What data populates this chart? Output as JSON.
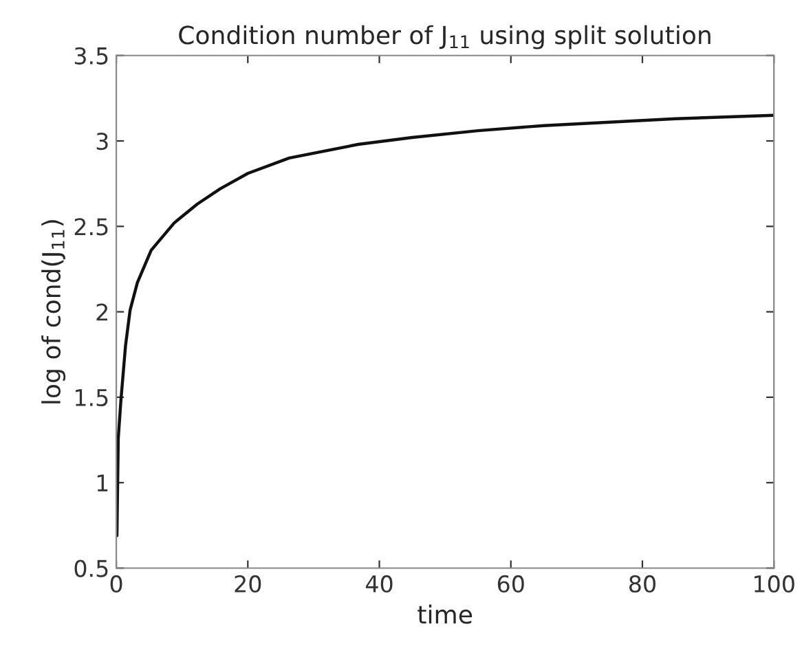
{
  "chart_data": {
    "type": "line",
    "title": "Condition number of J$_{11}$ using split solution",
    "xlabel": "time",
    "ylabel": "log of cond(J$_{11}$)",
    "series": [
      {
        "color": "#111111",
        "x": [
          0.1,
          0.3,
          0.7,
          1.4,
          2.1,
          3.2,
          5.3,
          8.8,
          12.3,
          15.8,
          20,
          26.3,
          36.8,
          45,
          55,
          65,
          75,
          85,
          100
        ],
        "values": [
          0.69,
          1.26,
          1.48,
          1.8,
          2.01,
          2.17,
          2.36,
          2.52,
          2.63,
          2.72,
          2.81,
          2.9,
          2.98,
          3.02,
          3.06,
          3.09,
          3.11,
          3.13,
          3.15
        ]
      }
    ],
    "xlim": [
      0,
      100
    ],
    "xticks": [
      0,
      20,
      40,
      60,
      80,
      100
    ],
    "ylim": [
      0.5,
      3.5
    ],
    "yticks": [
      0.5,
      1,
      1.5,
      2,
      2.5,
      3,
      3.5
    ],
    "grid": false,
    "marker": "none",
    "line_style": "solid"
  }
}
